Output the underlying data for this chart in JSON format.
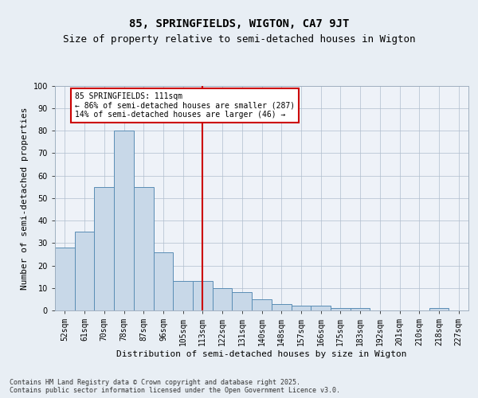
{
  "title": "85, SPRINGFIELDS, WIGTON, CA7 9JT",
  "subtitle": "Size of property relative to semi-detached houses in Wigton",
  "xlabel": "Distribution of semi-detached houses by size in Wigton",
  "ylabel": "Number of semi-detached properties",
  "categories": [
    "52sqm",
    "61sqm",
    "70sqm",
    "78sqm",
    "87sqm",
    "96sqm",
    "105sqm",
    "113sqm",
    "122sqm",
    "131sqm",
    "140sqm",
    "148sqm",
    "157sqm",
    "166sqm",
    "175sqm",
    "183sqm",
    "192sqm",
    "201sqm",
    "210sqm",
    "218sqm",
    "227sqm"
  ],
  "values": [
    28,
    35,
    55,
    80,
    55,
    26,
    13,
    13,
    10,
    8,
    5,
    3,
    2,
    2,
    1,
    1,
    0,
    0,
    0,
    1,
    0
  ],
  "bar_color": "#c8d8e8",
  "bar_edge_color": "#5a8db5",
  "vline_x_index": 7,
  "vline_color": "#cc0000",
  "annotation_text": "85 SPRINGFIELDS: 111sqm\n← 86% of semi-detached houses are smaller (287)\n14% of semi-detached houses are larger (46) →",
  "annotation_box_color": "#ffffff",
  "annotation_box_edge_color": "#cc0000",
  "ylim": [
    0,
    100
  ],
  "yticks": [
    0,
    10,
    20,
    30,
    40,
    50,
    60,
    70,
    80,
    90,
    100
  ],
  "bg_color": "#e8eef4",
  "plot_bg_color": "#eef2f8",
  "footer": "Contains HM Land Registry data © Crown copyright and database right 2025.\nContains public sector information licensed under the Open Government Licence v3.0.",
  "title_fontsize": 10,
  "subtitle_fontsize": 9,
  "axis_label_fontsize": 8,
  "tick_fontsize": 7,
  "footer_fontsize": 6,
  "annotation_fontsize": 7
}
